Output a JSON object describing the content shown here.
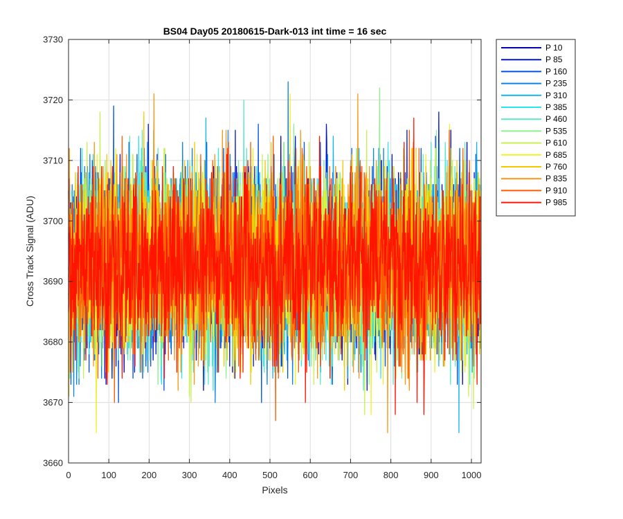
{
  "chart_data": {
    "type": "line",
    "title": "BS04 Day05 20180615-Dark-013 int time = 16 sec",
    "xlabel": "Pixels",
    "ylabel": "Cross Track Signal (ADU)",
    "xlim": [
      0,
      1024
    ],
    "ylim": [
      3660,
      3730
    ],
    "xticks": [
      0,
      100,
      200,
      300,
      400,
      500,
      600,
      700,
      800,
      900,
      1000
    ],
    "yticks": [
      3660,
      3670,
      3680,
      3690,
      3700,
      3710,
      3720,
      3730
    ],
    "grid": true,
    "legend_position": "outside-top-right",
    "noise_model": {
      "n_points": 1024,
      "mean": 3693,
      "sigma": 7.5
    },
    "series": [
      {
        "name": "P 10",
        "color": "#0000b4"
      },
      {
        "name": "P 85",
        "color": "#0014dc"
      },
      {
        "name": "P 160",
        "color": "#0050e6"
      },
      {
        "name": "P 235",
        "color": "#0a82e6"
      },
      {
        "name": "P 310",
        "color": "#12b4f0"
      },
      {
        "name": "P 385",
        "color": "#28e6f0"
      },
      {
        "name": "P 460",
        "color": "#5ae6c8"
      },
      {
        "name": "P 535",
        "color": "#8cf08c"
      },
      {
        "name": "P 610",
        "color": "#c8f050"
      },
      {
        "name": "P 685",
        "color": "#f0f028"
      },
      {
        "name": "P 760",
        "color": "#f5c800"
      },
      {
        "name": "P 835",
        "color": "#fa9614"
      },
      {
        "name": "P 910",
        "color": "#ff5a00"
      },
      {
        "name": "P 985",
        "color": "#ff1400"
      }
    ]
  }
}
